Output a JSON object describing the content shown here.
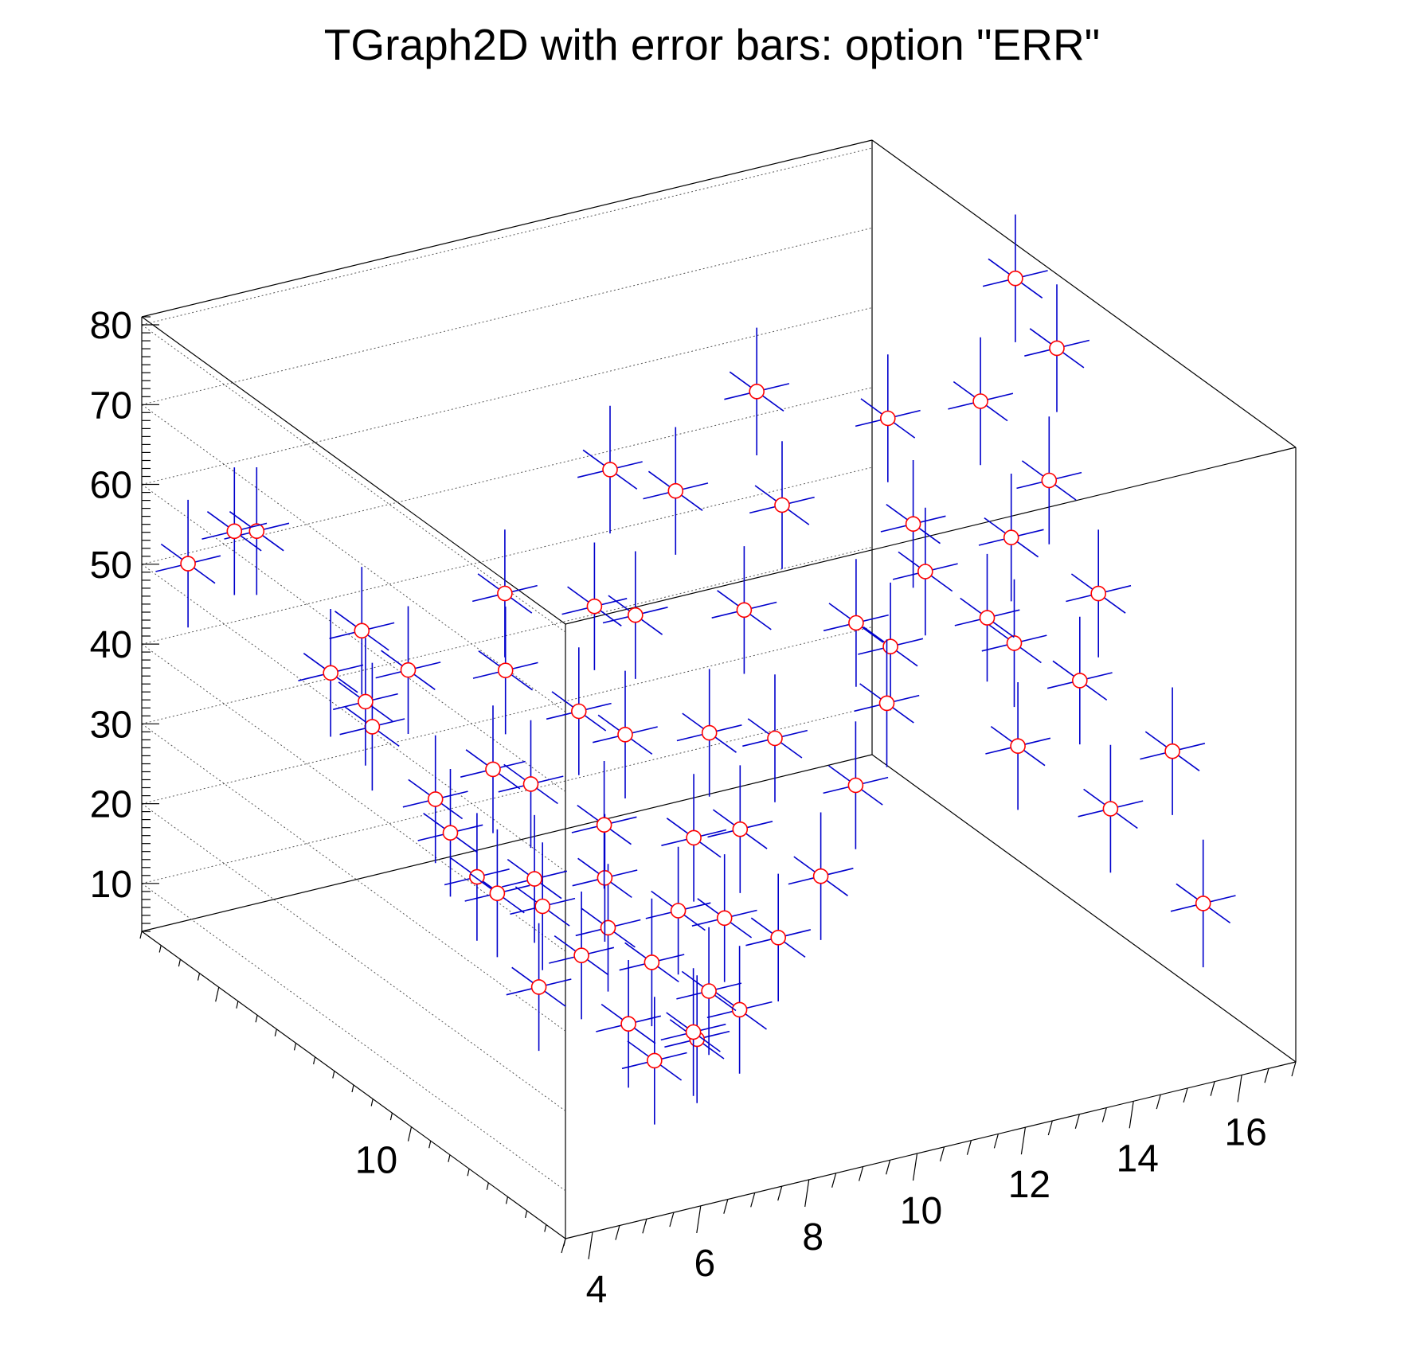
{
  "chart_data": {
    "type": "scatter",
    "title": "TGraph2D with error bars: option \"ERR\"",
    "xlabel": "",
    "ylabel": "",
    "zlabel": "",
    "xlim": [
      3.5,
      17
    ],
    "ylim": [
      6,
      17
    ],
    "zlim": [
      4,
      81
    ],
    "x_ticks": [
      4,
      6,
      8,
      10,
      12,
      14,
      16
    ],
    "y_ticks": [
      10
    ],
    "z_ticks": [
      10,
      20,
      30,
      40,
      50,
      60,
      70,
      80
    ],
    "grid": true,
    "colors": {
      "marker_edge": "#ff0000",
      "marker_fill": "#ffffff",
      "error_bar": "#0000cc",
      "frame": "#000000"
    },
    "points_note": "3D scatter with x, y, z error bars; points form a saddle-shaped surface",
    "points": [
      [
        5.0,
        7.0,
        37
      ],
      [
        6.0,
        7.2,
        18
      ],
      [
        7.0,
        7.5,
        18
      ],
      [
        8.0,
        7.8,
        19
      ],
      [
        9.0,
        8.2,
        25
      ],
      [
        10.0,
        8.5,
        30
      ],
      [
        11.0,
        9.0,
        38
      ],
      [
        12.0,
        9.5,
        52
      ],
      [
        13.0,
        10.0,
        58
      ],
      [
        15.0,
        10.5,
        44
      ],
      [
        16.0,
        11.0,
        61
      ],
      [
        16.5,
        11.5,
        75
      ],
      [
        4.5,
        8.0,
        37
      ],
      [
        4.0,
        9.0,
        38
      ],
      [
        4.3,
        10.5,
        42
      ],
      [
        4.2,
        12.0,
        46
      ],
      [
        4.5,
        13.5,
        47
      ],
      [
        4.2,
        15.0,
        60
      ],
      [
        4.5,
        16.0,
        56
      ],
      [
        4.0,
        16.5,
        51
      ],
      [
        5.5,
        9.5,
        20
      ],
      [
        5.8,
        11.0,
        26
      ],
      [
        6.0,
        12.5,
        28
      ],
      [
        5.5,
        14.0,
        40
      ],
      [
        6.5,
        15.5,
        42
      ],
      [
        6.8,
        9.0,
        15
      ],
      [
        7.0,
        10.5,
        18
      ],
      [
        7.2,
        12.0,
        22
      ],
      [
        7.5,
        13.5,
        30
      ],
      [
        7.0,
        15.0,
        38
      ],
      [
        8.0,
        9.0,
        12
      ],
      [
        8.3,
        10.5,
        15
      ],
      [
        8.5,
        12.0,
        20
      ],
      [
        8.2,
        13.5,
        27
      ],
      [
        8.8,
        15.0,
        35
      ],
      [
        9.0,
        10.0,
        12
      ],
      [
        9.5,
        11.5,
        16
      ],
      [
        9.2,
        13.0,
        22
      ],
      [
        9.8,
        14.5,
        30
      ],
      [
        9.5,
        16.0,
        40
      ],
      [
        10.0,
        11.0,
        16
      ],
      [
        10.5,
        12.5,
        20
      ],
      [
        10.3,
        14.0,
        28
      ],
      [
        10.8,
        15.5,
        38
      ],
      [
        11.0,
        12.0,
        22
      ],
      [
        11.5,
        13.5,
        28
      ],
      [
        11.2,
        15.0,
        38
      ],
      [
        11.8,
        16.5,
        50
      ],
      [
        12.0,
        12.5,
        30
      ],
      [
        12.5,
        14.0,
        40
      ],
      [
        12.3,
        15.5,
        50
      ],
      [
        13.0,
        11.0,
        38
      ],
      [
        13.5,
        12.5,
        42
      ],
      [
        13.2,
        14.0,
        52
      ],
      [
        13.8,
        15.5,
        60
      ],
      [
        14.0,
        9.0,
        38
      ],
      [
        14.5,
        10.5,
        48
      ],
      [
        14.2,
        12.0,
        55
      ],
      [
        14.8,
        13.5,
        62
      ],
      [
        15.0,
        8.0,
        32
      ],
      [
        15.5,
        9.5,
        42
      ],
      [
        15.3,
        11.0,
        55
      ],
      [
        15.8,
        12.5,
        66
      ],
      [
        16.0,
        7.0,
        22
      ],
      [
        16.5,
        8.5,
        35
      ],
      [
        16.2,
        10.0,
        50
      ],
      [
        16.8,
        13.0,
        78
      ]
    ]
  }
}
